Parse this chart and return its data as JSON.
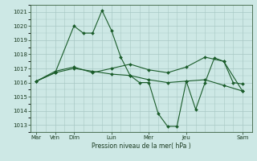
{
  "xlabel": "Pression niveau de la mer( hPa )",
  "ylim": [
    1012.5,
    1021.5
  ],
  "yticks": [
    1013,
    1014,
    1015,
    1016,
    1017,
    1018,
    1019,
    1020,
    1021
  ],
  "bg_color": "#cde8e5",
  "grid_color": "#a8c8c4",
  "line_color": "#1a5c2a",
  "series1_x": [
    0,
    1,
    2,
    2.5,
    3,
    3.5,
    4,
    4.5,
    5,
    5.5,
    6,
    6.5,
    7,
    7.5,
    8,
    8.5,
    9,
    9.5,
    10,
    10.5,
    11
  ],
  "series1_y": [
    1016.1,
    1016.7,
    1020.0,
    1019.5,
    1019.5,
    1021.1,
    1019.7,
    1017.8,
    1016.5,
    1016.0,
    1016.0,
    1013.8,
    1012.9,
    1012.9,
    1016.1,
    1014.1,
    1016.0,
    1017.75,
    1017.5,
    1016.0,
    1015.9
  ],
  "series2_x": [
    0,
    1,
    2,
    3,
    4,
    5,
    6,
    7,
    8,
    9,
    10,
    11
  ],
  "series2_y": [
    1016.1,
    1016.7,
    1017.0,
    1016.8,
    1016.6,
    1016.5,
    1016.2,
    1016.0,
    1016.1,
    1016.2,
    1015.8,
    1015.4
  ],
  "series3_x": [
    0,
    1,
    2,
    3,
    4,
    5,
    6,
    7,
    8,
    9,
    10,
    11
  ],
  "series3_y": [
    1016.1,
    1016.8,
    1017.1,
    1016.7,
    1017.0,
    1017.3,
    1016.9,
    1016.7,
    1017.1,
    1017.8,
    1017.5,
    1015.4
  ],
  "major_xtick_positions": [
    0,
    1,
    2,
    4,
    6,
    8,
    11
  ],
  "major_xtick_labels": [
    "Mar",
    "Ven",
    "Dim",
    "Lun",
    "Mer",
    "Jeu",
    "Sam"
  ],
  "minor_xtick_positions": [
    0.5,
    1.5,
    2.5,
    3,
    3.5,
    4.5,
    5,
    5.5,
    6.5,
    7,
    7.5,
    8.5,
    9,
    9.5,
    10,
    10.5
  ]
}
